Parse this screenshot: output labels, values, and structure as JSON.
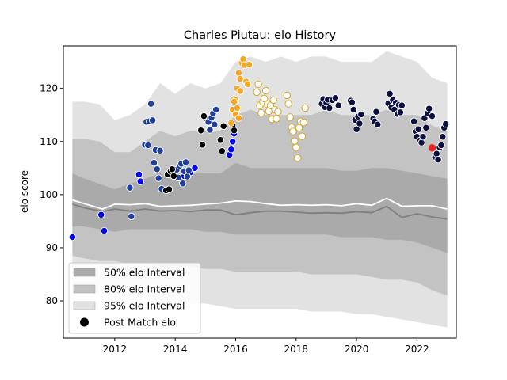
{
  "chart_data": {
    "type": "scatter",
    "title": "Charles Piutau: elo History",
    "xlabel": "",
    "ylabel": "elo score",
    "xlim": [
      2010.3,
      2023.3
    ],
    "ylim": [
      73,
      128
    ],
    "xticks": [
      2012,
      2014,
      2016,
      2018,
      2020,
      2022
    ],
    "yticks": [
      80,
      90,
      100,
      110,
      120
    ],
    "grid": false,
    "legend_position": "lower-left",
    "legend": [
      {
        "label": "50% elo Interval",
        "kind": "band",
        "color": "#aaaaaa"
      },
      {
        "label": "80% elo Interval",
        "kind": "band",
        "color": "#c3c3c3"
      },
      {
        "label": "95% elo Interval",
        "kind": "band",
        "color": "#e2e2e2"
      },
      {
        "label": "Post Match elo",
        "kind": "marker",
        "color": "#000000"
      }
    ],
    "bands": {
      "x": [
        2010.6,
        2011.0,
        2011.5,
        2012.0,
        2012.5,
        2013.0,
        2013.5,
        2014.0,
        2014.5,
        2015.0,
        2015.5,
        2016.0,
        2016.5,
        2017.0,
        2017.5,
        2018.0,
        2018.5,
        2019.0,
        2019.5,
        2020.0,
        2020.5,
        2021.0,
        2021.5,
        2022.0,
        2022.5,
        2023.0
      ],
      "p95_upper": [
        117.5,
        117.5,
        117,
        114,
        115,
        117,
        121,
        119,
        121,
        120,
        121,
        125,
        126,
        125,
        126,
        125,
        126,
        126,
        125,
        125,
        125,
        127,
        126,
        125,
        122,
        121
      ],
      "p80_upper": [
        110.5,
        110.5,
        110,
        108,
        108,
        110,
        112,
        111,
        112,
        112,
        112,
        115,
        116,
        115,
        115,
        115,
        115,
        116,
        115,
        115,
        115,
        116,
        115,
        115,
        113,
        112
      ],
      "p50_upper": [
        104,
        103,
        102,
        101,
        102,
        103,
        104,
        103,
        104,
        104,
        104,
        106,
        105,
        105,
        105,
        105,
        105,
        105,
        104.5,
        104.5,
        105,
        105,
        104.5,
        104,
        103.5,
        103
      ],
      "p50_lower": [
        94,
        94,
        93.5,
        93,
        93.5,
        93.5,
        93.5,
        93.5,
        93.5,
        93,
        93,
        92.5,
        92.5,
        92.5,
        92.5,
        92.5,
        92.5,
        92.5,
        92,
        92,
        92,
        91.5,
        91.5,
        91,
        90,
        89
      ],
      "p80_lower": [
        88.5,
        88,
        87.5,
        87.5,
        87,
        87,
        86.5,
        86.5,
        86.5,
        86,
        86,
        85.5,
        85.5,
        85.5,
        85.5,
        85.5,
        85,
        85,
        85,
        85,
        84.5,
        84,
        84,
        83.5,
        82,
        81
      ],
      "p95_lower": [
        82.5,
        82,
        81.5,
        81.5,
        81,
        80.5,
        80,
        80,
        79.5,
        79.5,
        79,
        78.5,
        78.5,
        78.5,
        78.5,
        78.5,
        78,
        78,
        78,
        77.5,
        77.5,
        77,
        76.5,
        76,
        75.5,
        75
      ]
    },
    "lines": [
      {
        "name": "",
        "color": "#ffffff",
        "x": [
          2010.6,
          2011.0,
          2011.6,
          2012.0,
          2012.5,
          2013.0,
          2013.5,
          2014.0,
          2014.5,
          2015.0,
          2015.5,
          2016.0,
          2016.5,
          2017.0,
          2017.5,
          2018.0,
          2018.5,
          2019.0,
          2019.5,
          2020.0,
          2020.5,
          2021.0,
          2021.5,
          2022.0,
          2022.5,
          2023.0
        ],
        "y": [
          99,
          98.3,
          97.3,
          98.2,
          98.1,
          98.3,
          97.8,
          97.9,
          98.0,
          98.2,
          98.4,
          98.8,
          98.7,
          98.3,
          98.0,
          98.1,
          98.0,
          98.1,
          97.9,
          98.3,
          98.0,
          99.3,
          97.8,
          97.9,
          97.9,
          97.3
        ]
      },
      {
        "name": "",
        "color": "#7f7f7f",
        "x": [
          2010.6,
          2011.0,
          2011.6,
          2012.0,
          2012.5,
          2013.0,
          2013.5,
          2014.0,
          2014.5,
          2015.0,
          2015.5,
          2016.0,
          2016.5,
          2017.0,
          2017.5,
          2018.0,
          2018.5,
          2019.0,
          2019.5,
          2020.0,
          2020.5,
          2021.0,
          2021.5,
          2022.0,
          2022.5,
          2023.0
        ],
        "y": [
          98.2,
          97.5,
          96.8,
          97.3,
          96.9,
          97.3,
          96.9,
          97.0,
          96.8,
          97.1,
          97.1,
          96.2,
          96.6,
          96.9,
          96.9,
          96.7,
          96.5,
          96.6,
          96.5,
          96.8,
          96.6,
          97.8,
          95.7,
          96.4,
          95.8,
          95.4
        ]
      }
    ],
    "series": [
      {
        "name": "",
        "color": "#0000ee",
        "x": [
          2010.6,
          2011.55,
          2011.65,
          2012.8,
          2012.85,
          2014.3,
          2014.5,
          2014.65,
          2015.8,
          2015.85,
          2015.9,
          2015.95
        ],
        "y": [
          92,
          96.2,
          93.2,
          103.8,
          102.5,
          103.5,
          104.2,
          105.0,
          107.5,
          108.5,
          110.0,
          111.5
        ]
      },
      {
        "name": "",
        "color": "#1f3f9a",
        "x": [
          2012.5,
          2012.55,
          2013.0,
          2013.05,
          2013.1,
          2013.15,
          2013.2,
          2013.25,
          2013.3,
          2013.35,
          2013.4,
          2013.45,
          2013.5,
          2013.55,
          2014.05,
          2014.1,
          2014.15,
          2014.2,
          2014.25,
          2014.3,
          2014.35,
          2014.4,
          2014.45,
          2015.05,
          2015.1,
          2015.15,
          2015.2,
          2015.25,
          2015.3,
          2015.35
        ],
        "y": [
          101.3,
          95.9,
          109.4,
          113.7,
          109.3,
          113.8,
          117.1,
          114.0,
          106.0,
          108.4,
          104.8,
          103.1,
          108.3,
          101.1,
          104.7,
          103.2,
          105.4,
          105.8,
          102.1,
          104.4,
          106.1,
          103.4,
          104.6,
          114.2,
          113.7,
          112.2,
          114.5,
          115.3,
          113.2,
          116.0
        ]
      },
      {
        "name": "",
        "color": "#000000",
        "x": [
          2013.7,
          2013.75,
          2013.8,
          2013.85,
          2013.9,
          2013.95,
          2014.85,
          2014.9,
          2014.95,
          2015.5,
          2015.55,
          2015.6,
          2015.9,
          2015.95
        ],
        "y": [
          100.8,
          103.8,
          101.0,
          104.4,
          104.8,
          103.5,
          112.1,
          109.4,
          114.8,
          110.3,
          108.2,
          112.9,
          113.1,
          112.1
        ]
      },
      {
        "name": "",
        "color": "#f5a623",
        "x": [
          2015.85,
          2015.9,
          2015.95,
          2016.0,
          2016.05,
          2016.1,
          2016.15,
          2016.2,
          2016.25,
          2016.3,
          2016.35,
          2016.4,
          2016.45,
          2015.95,
          2016.0,
          2016.05,
          2016.1,
          2016.15
        ],
        "y": [
          113.5,
          116.0,
          118.0,
          117.8,
          120.0,
          122.9,
          121.8,
          124.8,
          125.5,
          124.4,
          121.3,
          120.8,
          124.5,
          117.5,
          115.1,
          116.3,
          114.4,
          119.5
        ]
      },
      {
        "name": "",
        "color": "#ffffff",
        "edge": "#d4a017",
        "x": [
          2016.7,
          2016.75,
          2016.8,
          2016.85,
          2016.9,
          2016.95,
          2017.0,
          2017.05,
          2017.1,
          2017.15,
          2017.2,
          2017.25,
          2017.3,
          2017.35,
          2017.4,
          2017.7,
          2017.75,
          2017.8,
          2017.85,
          2017.9,
          2017.95,
          2018.0,
          2018.05,
          2018.1,
          2018.15,
          2018.2,
          2018.25,
          2018.3
        ],
        "y": [
          119.3,
          120.8,
          116.8,
          115.4,
          117.5,
          118.1,
          119.6,
          117.0,
          115.7,
          116.8,
          114.2,
          117.8,
          116.0,
          114.3,
          115.6,
          118.7,
          117.1,
          114.6,
          112.7,
          111.9,
          110.1,
          108.9,
          106.9,
          112.6,
          113.8,
          111.0,
          113.6,
          116.3
        ]
      },
      {
        "name": "",
        "color": "#0a0f3d",
        "edge": "#ffffff",
        "x": [
          2018.85,
          2018.9,
          2018.95,
          2019.0,
          2019.05,
          2019.1,
          2019.2,
          2019.3,
          2019.4,
          2019.8,
          2019.85,
          2019.9,
          2019.95,
          2020.0,
          2020.05,
          2020.1,
          2020.15,
          2020.55,
          2020.6,
          2020.65,
          2020.7,
          2021.05,
          2021.1,
          2021.15,
          2021.2,
          2021.25,
          2021.3,
          2021.35,
          2021.4,
          2021.45,
          2021.5,
          2021.9,
          2021.95,
          2022.0,
          2022.05,
          2022.1,
          2022.15,
          2022.2,
          2022.25,
          2022.3,
          2022.35,
          2022.4,
          2022.5,
          2022.6,
          2022.65,
          2022.7,
          2022.75,
          2022.8,
          2022.85,
          2022.9,
          2022.95
        ],
        "y": [
          117.1,
          118.0,
          116.5,
          117.3,
          117.9,
          116.3,
          117.8,
          118.2,
          116.8,
          117.7,
          117.4,
          116.0,
          114.1,
          112.3,
          114.7,
          113.4,
          115.1,
          114.3,
          113.8,
          115.6,
          113.2,
          117.2,
          119.0,
          116.4,
          117.8,
          116.0,
          117.3,
          115.2,
          116.9,
          115.5,
          116.8,
          113.8,
          111.9,
          110.9,
          112.3,
          110.2,
          109.8,
          110.9,
          114.4,
          112.6,
          115.3,
          116.2,
          114.8,
          107.1,
          107.7,
          106.6,
          108.9,
          109.3,
          110.9,
          112.6,
          113.3
        ]
      },
      {
        "name": "",
        "color": "#ee2222",
        "edge": "#ee2222",
        "x": [
          2022.5
        ],
        "y": [
          108.8
        ]
      }
    ]
  }
}
